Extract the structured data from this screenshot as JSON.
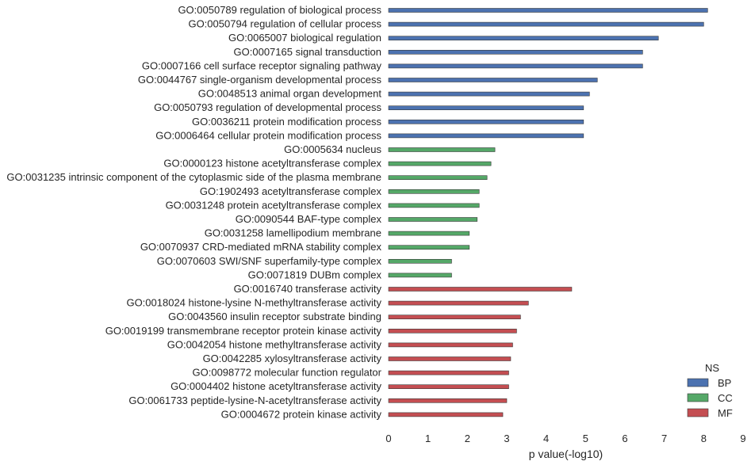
{
  "chart_data": {
    "type": "bar",
    "orientation": "horizontal",
    "xlabel": "p value(-log10)",
    "xlim": [
      0,
      9
    ],
    "xticks": [
      0,
      1,
      2,
      3,
      4,
      5,
      6,
      7,
      8,
      9
    ],
    "grid": false,
    "legend": {
      "title": "NS",
      "placement": "bottom-right",
      "entries": [
        {
          "name": "BP",
          "color": "#4c72b0"
        },
        {
          "name": "CC",
          "color": "#55a868"
        },
        {
          "name": "MF",
          "color": "#c44e52"
        }
      ]
    },
    "bars": [
      {
        "label": "GO:0050789 regulation of biological process",
        "value": 8.1,
        "ns": "BP"
      },
      {
        "label": "GO:0050794 regulation of cellular process",
        "value": 8.0,
        "ns": "BP"
      },
      {
        "label": "GO:0065007 biological regulation",
        "value": 6.85,
        "ns": "BP"
      },
      {
        "label": "GO:0007165 signal transduction",
        "value": 6.45,
        "ns": "BP"
      },
      {
        "label": "GO:0007166 cell surface receptor signaling pathway",
        "value": 6.45,
        "ns": "BP"
      },
      {
        "label": "GO:0044767 single-organism developmental process",
        "value": 5.3,
        "ns": "BP"
      },
      {
        "label": "GO:0048513 animal organ development",
        "value": 5.1,
        "ns": "BP"
      },
      {
        "label": "GO:0050793 regulation of developmental process",
        "value": 4.95,
        "ns": "BP"
      },
      {
        "label": "GO:0036211 protein modification process",
        "value": 4.95,
        "ns": "BP"
      },
      {
        "label": "GO:0006464 cellular protein modification process",
        "value": 4.95,
        "ns": "BP"
      },
      {
        "label": "GO:0005634 nucleus",
        "value": 2.7,
        "ns": "CC"
      },
      {
        "label": "GO:0000123 histone acetyltransferase complex",
        "value": 2.6,
        "ns": "CC"
      },
      {
        "label": "GO:0031235 intrinsic component of the cytoplasmic side of the plasma membrane",
        "value": 2.5,
        "ns": "CC"
      },
      {
        "label": "GO:1902493 acetyltransferase complex",
        "value": 2.3,
        "ns": "CC"
      },
      {
        "label": "GO:0031248 protein acetyltransferase complex",
        "value": 2.3,
        "ns": "CC"
      },
      {
        "label": "GO:0090544 BAF-type complex",
        "value": 2.25,
        "ns": "CC"
      },
      {
        "label": "GO:0031258 lamellipodium membrane",
        "value": 2.05,
        "ns": "CC"
      },
      {
        "label": "GO:0070937 CRD-mediated mRNA stability complex",
        "value": 2.05,
        "ns": "CC"
      },
      {
        "label": "GO:0070603 SWI/SNF superfamily-type complex",
        "value": 1.6,
        "ns": "CC"
      },
      {
        "label": "GO:0071819 DUBm complex",
        "value": 1.6,
        "ns": "CC"
      },
      {
        "label": "GO:0016740 transferase activity",
        "value": 4.65,
        "ns": "MF"
      },
      {
        "label": "GO:0018024 histone-lysine N-methyltransferase activity",
        "value": 3.55,
        "ns": "MF"
      },
      {
        "label": "GO:0043560 insulin receptor substrate binding",
        "value": 3.35,
        "ns": "MF"
      },
      {
        "label": "GO:0019199 transmembrane receptor protein kinase activity",
        "value": 3.25,
        "ns": "MF"
      },
      {
        "label": "GO:0042054 histone methyltransferase activity",
        "value": 3.15,
        "ns": "MF"
      },
      {
        "label": "GO:0042285 xylosyltransferase activity",
        "value": 3.1,
        "ns": "MF"
      },
      {
        "label": "GO:0098772 molecular function regulator",
        "value": 3.05,
        "ns": "MF"
      },
      {
        "label": "GO:0004402 histone acetyltransferase activity",
        "value": 3.05,
        "ns": "MF"
      },
      {
        "label": "GO:0061733 peptide-lysine-N-acetyltransferase activity",
        "value": 3.0,
        "ns": "MF"
      },
      {
        "label": "GO:0004672 protein kinase activity",
        "value": 2.9,
        "ns": "MF"
      }
    ]
  }
}
